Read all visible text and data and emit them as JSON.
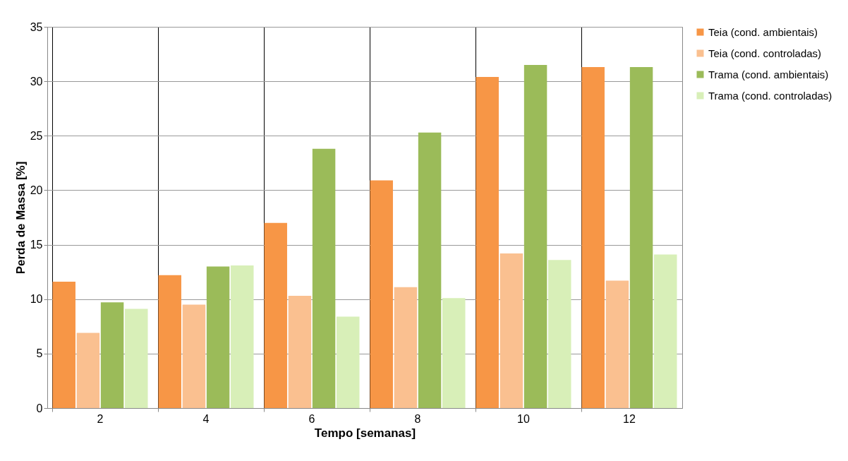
{
  "chart_data": {
    "type": "bar",
    "xlabel": "Tempo [semanas]",
    "ylabel": "Perda de Massa [%]",
    "categories": [
      "2",
      "4",
      "6",
      "8",
      "10",
      "12"
    ],
    "series": [
      {
        "name": "Teia (cond. ambientais)",
        "color": "#f79646",
        "values": [
          11.6,
          12.2,
          17.0,
          20.9,
          30.4,
          31.3
        ]
      },
      {
        "name": "Teia (cond. controladas)",
        "color": "#fac090",
        "values": [
          6.9,
          9.5,
          10.3,
          11.1,
          14.2,
          11.7
        ]
      },
      {
        "name": "Trama (cond. ambientais)",
        "color": "#9bbb59",
        "values": [
          9.7,
          13.0,
          23.8,
          25.3,
          31.5,
          31.3
        ]
      },
      {
        "name": "Trama (cond. controladas)",
        "color": "#d8efb8",
        "values": [
          9.1,
          13.1,
          8.4,
          10.1,
          13.6,
          14.1
        ]
      }
    ],
    "ylim": [
      0,
      35
    ],
    "yticks": [
      0,
      5,
      10,
      15,
      20,
      25,
      30,
      35
    ],
    "grid": true,
    "legend": "right"
  }
}
